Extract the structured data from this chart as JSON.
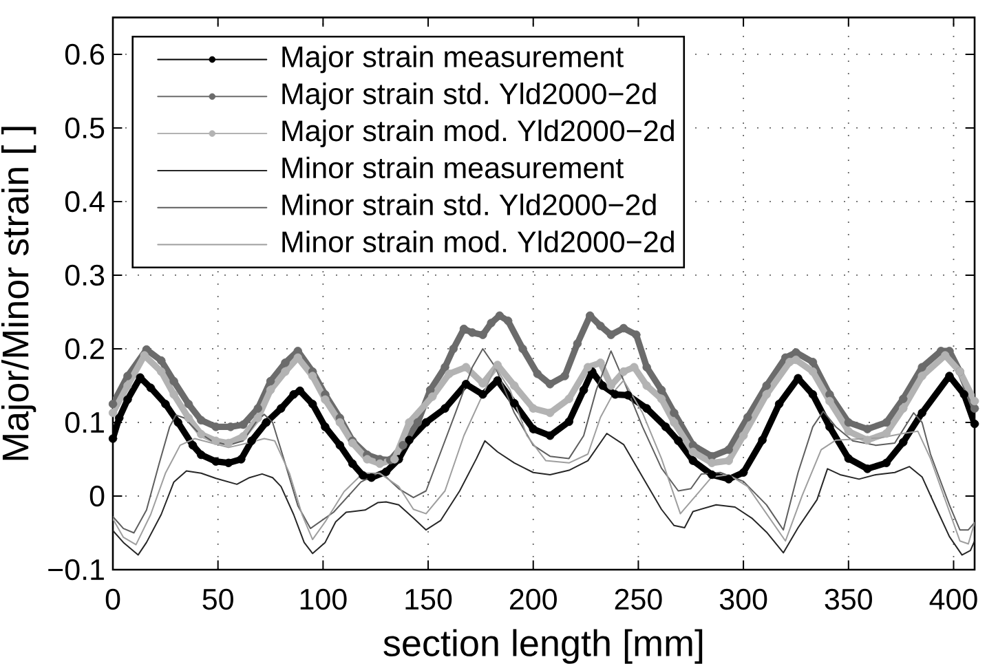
{
  "chart_data": {
    "type": "line",
    "xlabel": "section length [mm]",
    "ylabel": "Major/Minor strain [ ]",
    "xlim": [
      0,
      410
    ],
    "ylim": [
      -0.1,
      0.65
    ],
    "xticks": [
      0,
      50,
      100,
      150,
      200,
      250,
      300,
      350,
      400
    ],
    "yticks": [
      {
        "value": -0.1,
        "label": "−0.1"
      },
      0,
      0.1,
      0.2,
      0.3,
      0.4,
      0.5,
      0.6
    ],
    "grid": true,
    "legend": "top left",
    "series": [
      {
        "name": "Major strain measurement",
        "color": "#000000",
        "marker": "circle",
        "x": [
          0,
          3,
          7,
          13,
          18,
          25,
          31,
          38,
          42,
          49,
          55,
          61,
          66,
          73,
          80,
          86,
          89,
          95,
          101,
          108,
          114,
          119,
          123,
          130,
          136,
          141,
          149,
          158,
          168,
          176,
          183,
          191,
          200,
          208,
          217,
          224,
          228,
          233,
          239,
          245,
          254,
          263,
          269,
          276,
          285,
          293,
          300,
          309,
          317,
          326,
          333,
          341,
          350,
          359,
          368,
          376,
          385,
          398,
          405,
          410
        ],
        "values": [
          0.078,
          0.106,
          0.131,
          0.161,
          0.147,
          0.125,
          0.1,
          0.069,
          0.056,
          0.047,
          0.045,
          0.05,
          0.075,
          0.1,
          0.119,
          0.138,
          0.143,
          0.125,
          0.094,
          0.069,
          0.044,
          0.028,
          0.025,
          0.033,
          0.05,
          0.076,
          0.1,
          0.119,
          0.152,
          0.138,
          0.157,
          0.126,
          0.091,
          0.082,
          0.101,
          0.144,
          0.169,
          0.15,
          0.138,
          0.137,
          0.119,
          0.094,
          0.075,
          0.048,
          0.029,
          0.023,
          0.032,
          0.076,
          0.125,
          0.16,
          0.138,
          0.094,
          0.051,
          0.037,
          0.045,
          0.073,
          0.113,
          0.163,
          0.138,
          0.098
        ]
      },
      {
        "name": "Major strain std. Yld2000−2d",
        "color": "#6b6b6b",
        "marker": "circle",
        "x": [
          0,
          7,
          16,
          23,
          29,
          36,
          42,
          49,
          56,
          62,
          69,
          75,
          82,
          88,
          95,
          101,
          108,
          114,
          121,
          127,
          132,
          138,
          145,
          151,
          158,
          162,
          167,
          171,
          176,
          180,
          184,
          188,
          195,
          202,
          208,
          215,
          221,
          227,
          232,
          237,
          243,
          249,
          254,
          261,
          267,
          276,
          285,
          293,
          302,
          311,
          320,
          325,
          333,
          341,
          350,
          359,
          368,
          376,
          385,
          394,
          398,
          403,
          410
        ],
        "values": [
          0.125,
          0.163,
          0.199,
          0.184,
          0.156,
          0.125,
          0.103,
          0.094,
          0.094,
          0.097,
          0.119,
          0.156,
          0.181,
          0.197,
          0.169,
          0.138,
          0.106,
          0.075,
          0.056,
          0.05,
          0.049,
          0.069,
          0.1,
          0.144,
          0.175,
          0.2,
          0.227,
          0.222,
          0.219,
          0.235,
          0.245,
          0.238,
          0.2,
          0.166,
          0.152,
          0.163,
          0.207,
          0.245,
          0.231,
          0.219,
          0.228,
          0.219,
          0.175,
          0.144,
          0.113,
          0.069,
          0.054,
          0.063,
          0.107,
          0.15,
          0.188,
          0.195,
          0.182,
          0.138,
          0.1,
          0.091,
          0.1,
          0.132,
          0.175,
          0.197,
          0.197,
          0.169,
          0.119
        ]
      },
      {
        "name": "Major strain mod. Yld2000−2d",
        "color": "#b3b3b3",
        "marker": "circle",
        "x": [
          0,
          7,
          15,
          23,
          29,
          36,
          42,
          49,
          55,
          62,
          69,
          75,
          82,
          88,
          95,
          101,
          108,
          114,
          121,
          127,
          134,
          141,
          152,
          160,
          168,
          176,
          183,
          191,
          200,
          208,
          217,
          226,
          232,
          237,
          243,
          248,
          254,
          261,
          267,
          276,
          285,
          293,
          300,
          311,
          322,
          325,
          333,
          341,
          350,
          359,
          368,
          376,
          385,
          396,
          403,
          410
        ],
        "values": [
          0.113,
          0.15,
          0.191,
          0.169,
          0.138,
          0.106,
          0.084,
          0.075,
          0.072,
          0.081,
          0.106,
          0.144,
          0.169,
          0.188,
          0.163,
          0.131,
          0.1,
          0.072,
          0.05,
          0.044,
          0.05,
          0.1,
          0.135,
          0.166,
          0.175,
          0.153,
          0.178,
          0.15,
          0.119,
          0.113,
          0.132,
          0.175,
          0.181,
          0.15,
          0.169,
          0.175,
          0.15,
          0.132,
          0.1,
          0.06,
          0.045,
          0.048,
          0.082,
          0.138,
          0.182,
          0.185,
          0.169,
          0.129,
          0.088,
          0.076,
          0.085,
          0.119,
          0.163,
          0.191,
          0.169,
          0.129
        ]
      },
      {
        "name": "Minor strain measurement",
        "color": "#262626",
        "marker": "none",
        "x": [
          0,
          5,
          12,
          16,
          23,
          29,
          35,
          42,
          49,
          59,
          65,
          71,
          76,
          80,
          86,
          91,
          95,
          101,
          106,
          111,
          120,
          126,
          130,
          136,
          143,
          149,
          156,
          165,
          173,
          177,
          183,
          191,
          200,
          208,
          217,
          226,
          235,
          243,
          252,
          261,
          267,
          272,
          276,
          287,
          296,
          304,
          311,
          319,
          326,
          335,
          340,
          346,
          355,
          363,
          372,
          379,
          385,
          392,
          398,
          404,
          408,
          410
        ],
        "values": [
          -0.047,
          -0.063,
          -0.08,
          -0.063,
          -0.025,
          0.019,
          0.034,
          0.031,
          0.024,
          0.016,
          0.025,
          0.03,
          0.025,
          0.013,
          -0.025,
          -0.063,
          -0.078,
          -0.063,
          -0.035,
          -0.022,
          -0.019,
          -0.009,
          -0.008,
          -0.012,
          -0.03,
          -0.046,
          -0.033,
          0.007,
          0.051,
          0.075,
          0.06,
          0.045,
          0.032,
          0.029,
          0.035,
          0.048,
          0.085,
          0.07,
          0.026,
          -0.018,
          -0.04,
          -0.043,
          -0.021,
          -0.012,
          -0.015,
          -0.03,
          -0.049,
          -0.077,
          -0.043,
          -0.005,
          0.037,
          0.029,
          0.023,
          0.029,
          0.032,
          0.04,
          0.026,
          -0.018,
          -0.055,
          -0.08,
          -0.074,
          -0.061
        ]
      },
      {
        "name": "Minor strain std. Yld2000−2d",
        "color": "#5e5e5e",
        "marker": "none",
        "x": [
          0,
          5,
          10,
          16,
          22,
          27,
          30,
          34,
          40,
          47,
          55,
          62,
          68,
          72,
          76,
          82,
          88,
          94,
          99,
          105,
          118,
          126,
          130,
          136,
          143,
          149,
          163,
          171,
          176,
          182,
          191,
          200,
          208,
          217,
          224,
          230,
          237,
          243,
          252,
          261,
          269,
          275,
          280,
          289,
          300,
          311,
          319,
          326,
          333,
          338,
          344,
          352,
          363,
          372,
          381,
          385,
          389,
          398,
          403,
          407,
          410
        ],
        "values": [
          -0.028,
          -0.044,
          -0.05,
          -0.019,
          0.044,
          0.094,
          0.11,
          0.106,
          0.088,
          0.075,
          0.069,
          0.075,
          0.1,
          0.111,
          0.1,
          0.044,
          -0.013,
          -0.044,
          -0.034,
          -0.022,
          0.019,
          0.031,
          0.026,
          0.01,
          -0.002,
          0.007,
          0.113,
          0.175,
          0.2,
          0.175,
          0.113,
          0.069,
          0.054,
          0.051,
          0.082,
          0.144,
          0.197,
          0.157,
          0.094,
          0.038,
          0.007,
          0.01,
          0.03,
          0.032,
          0.02,
          -0.012,
          -0.046,
          0.032,
          0.094,
          0.115,
          0.094,
          0.075,
          0.069,
          0.072,
          0.113,
          0.1,
          0.057,
          -0.012,
          -0.046,
          -0.046,
          -0.036
        ]
      },
      {
        "name": "Minor strain mod. Yld2000−2d",
        "color": "#9e9e9e",
        "marker": "none",
        "x": [
          0,
          5,
          11,
          18,
          25,
          32,
          39,
          47,
          55,
          64,
          72,
          77,
          84,
          90,
          95,
          101,
          110,
          119,
          127,
          136,
          143,
          149,
          158,
          167,
          176,
          182,
          189,
          197,
          206,
          217,
          226,
          232,
          239,
          243,
          252,
          261,
          270,
          285,
          293,
          302,
          311,
          320,
          328,
          337,
          344,
          365,
          376,
          383,
          389,
          396,
          403,
          407,
          410
        ],
        "values": [
          -0.031,
          -0.056,
          -0.066,
          -0.025,
          0.031,
          0.069,
          0.078,
          0.072,
          0.066,
          0.072,
          0.078,
          0.075,
          0.031,
          -0.025,
          -0.059,
          -0.035,
          0.006,
          0.031,
          0.031,
          0.013,
          -0.018,
          -0.024,
          0.007,
          0.082,
          0.138,
          0.175,
          0.144,
          0.082,
          0.048,
          0.045,
          0.057,
          0.107,
          0.144,
          0.157,
          0.113,
          0.051,
          -0.024,
          0.026,
          0.029,
          0.013,
          -0.024,
          -0.061,
          0.001,
          0.063,
          0.076,
          0.079,
          0.085,
          0.088,
          0.051,
          -0.005,
          -0.061,
          -0.065,
          -0.036
        ]
      }
    ]
  }
}
